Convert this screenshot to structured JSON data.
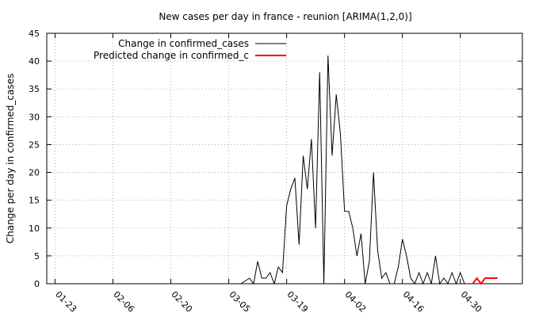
{
  "chart_data": {
    "type": "line",
    "title": "New cases per day in france - reunion [ARIMA(1,2,0)]",
    "xlabel": "",
    "ylabel": "Change per day in confirmed_cases",
    "ylim": [
      0,
      45
    ],
    "yticks": [
      0,
      5,
      10,
      15,
      20,
      25,
      30,
      35,
      40,
      45
    ],
    "xlim": [
      -2,
      113
    ],
    "xticks": [
      {
        "x": 0,
        "label": "01-23"
      },
      {
        "x": 14,
        "label": "02-06"
      },
      {
        "x": 28,
        "label": "02-20"
      },
      {
        "x": 42,
        "label": "03-05"
      },
      {
        "x": 56,
        "label": "03-19"
      },
      {
        "x": 70,
        "label": "04-02"
      },
      {
        "x": 84,
        "label": "04-16"
      },
      {
        "x": 98,
        "label": "04-30"
      }
    ],
    "grid": true,
    "legend_position": "top-left",
    "series": [
      {
        "name": "Change in confirmed_cases",
        "color": "#000000",
        "x": [
          45,
          47,
          48,
          49,
          50,
          51,
          52,
          53,
          54,
          55,
          56,
          57,
          58,
          59,
          60,
          61,
          62,
          63,
          64,
          65,
          66,
          67,
          68,
          69,
          70,
          71,
          72,
          73,
          74,
          75,
          76,
          77,
          78,
          79,
          80,
          81,
          82,
          83,
          84,
          85,
          86,
          87,
          88,
          89,
          90,
          91,
          92,
          93,
          94,
          95,
          96,
          97,
          98,
          99,
          100
        ],
        "y": [
          0,
          1,
          0,
          4,
          1,
          1,
          2,
          0,
          3,
          2,
          14,
          17,
          19,
          7,
          23,
          17,
          26,
          10,
          38,
          0,
          41,
          23,
          34,
          27,
          13,
          13,
          10,
          5,
          9,
          0,
          4,
          20,
          6,
          1,
          2,
          0,
          0,
          3,
          8,
          5,
          1,
          0,
          2,
          0,
          2,
          0,
          5,
          0,
          1,
          0,
          2,
          0,
          2,
          0,
          0
        ]
      },
      {
        "name": "Predicted change in confirmed_c",
        "color": "#ff0000",
        "x": [
          101,
          102,
          103,
          104,
          105,
          106,
          107
        ],
        "y": [
          0,
          1,
          0,
          1,
          1,
          1,
          1
        ]
      }
    ]
  }
}
